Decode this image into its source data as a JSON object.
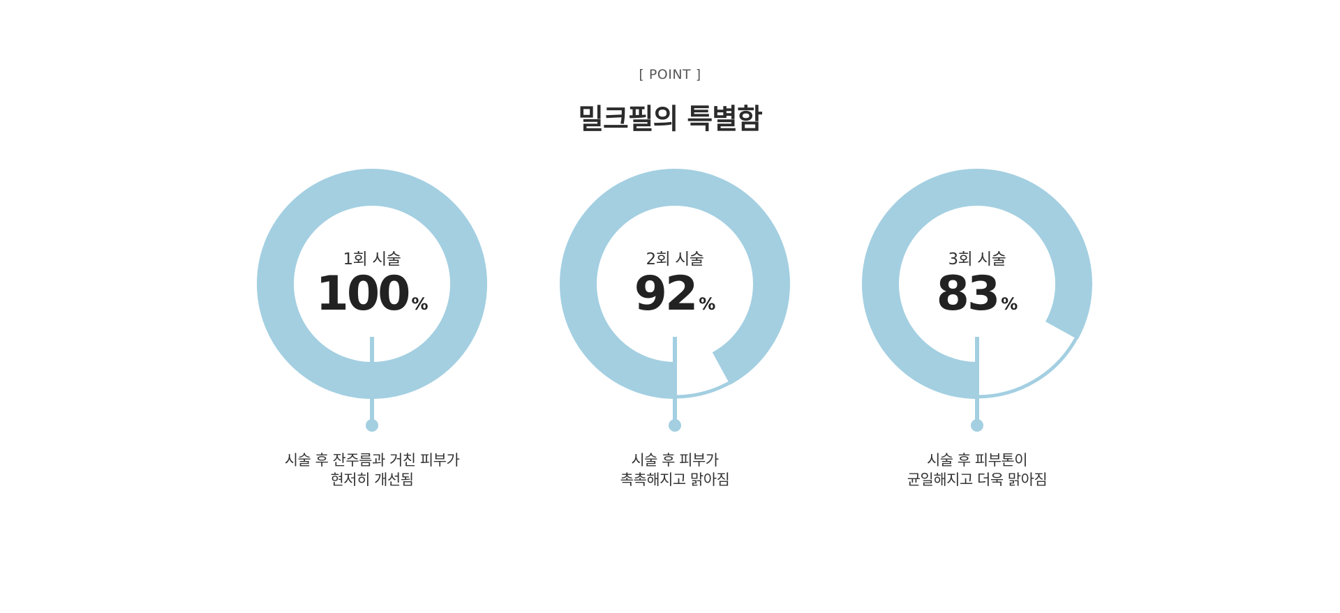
{
  "section": {
    "eyebrow": "[ POINT ]",
    "title": "밀크필의 특별함"
  },
  "colors": {
    "accent": "#a3cfe1",
    "text": "#2b2b2b"
  },
  "stats": [
    {
      "session": "1회 시술",
      "value": "100",
      "unit": "%",
      "fill_fraction": 1.0,
      "desc_line1": "시술 후 잔주름과 거친 피부가",
      "desc_line2": "현저히 개선됨"
    },
    {
      "session": "2회 시술",
      "value": "92",
      "unit": "%",
      "fill_fraction": 0.92,
      "desc_line1": "시술 후 피부가",
      "desc_line2": "촉촉해지고 맑아짐"
    },
    {
      "session": "3회 시술",
      "value": "83",
      "unit": "%",
      "fill_fraction": 0.83,
      "desc_line1": "시술 후 피부톤이",
      "desc_line2": "균일해지고 더욱 맑아짐"
    }
  ]
}
